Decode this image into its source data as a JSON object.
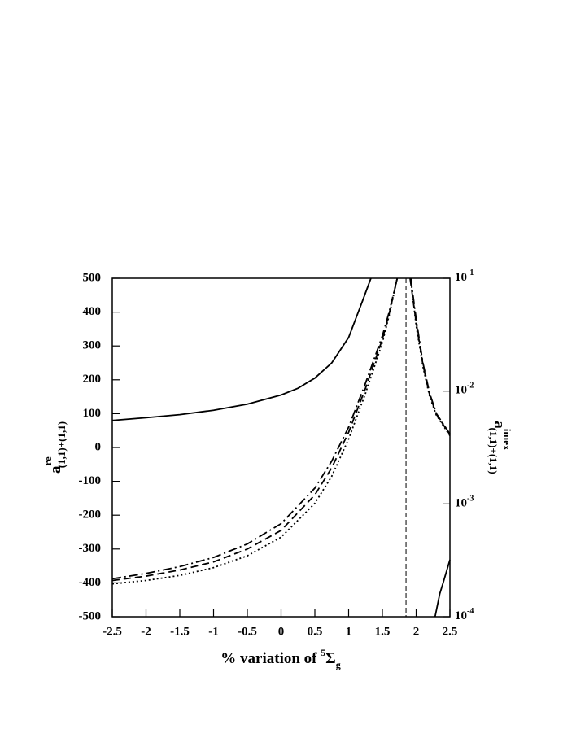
{
  "chart_data": {
    "type": "line",
    "xlabel": {
      "main": "% variation of ",
      "sup": "5",
      "symbol": "Σ",
      "sub": "g"
    },
    "ylabel": {
      "main": "a",
      "sup": "re",
      "sub": "(1,1)+(1,1)"
    },
    "y2label": {
      "main": "a",
      "sup": "imex",
      "sub": "(1,1)+(1,1)"
    },
    "xlim": [
      -2.5,
      2.5
    ],
    "xticks": [
      -2.5,
      -2,
      -1.5,
      -1,
      -0.5,
      0,
      0.5,
      1,
      1.5,
      2,
      2.5
    ],
    "ylim": [
      -500,
      500
    ],
    "yticks": [
      -500,
      -400,
      -300,
      -200,
      -100,
      0,
      100,
      200,
      300,
      400,
      500
    ],
    "y2lim": [
      0.0001,
      0.1
    ],
    "y2scale": "log",
    "y2ticks": [
      {
        "value": 0.0001,
        "label": {
          "base": "10",
          "exp": "-4"
        }
      },
      {
        "value": 0.001,
        "label": {
          "base": "10",
          "exp": "-3"
        }
      },
      {
        "value": 0.01,
        "label": {
          "base": "10",
          "exp": "-2"
        }
      },
      {
        "value": 0.1,
        "label": {
          "base": "10",
          "exp": "-1"
        }
      }
    ],
    "vline_x": 1.85,
    "series": [
      {
        "color": "#000000",
        "linestyle": "solid",
        "x": [
          -2.5,
          -2,
          -1.5,
          -1,
          -0.5,
          0,
          0.25,
          0.5,
          0.75,
          1,
          1.2,
          1.33
        ],
        "values": [
          80,
          88,
          97,
          110,
          128,
          155,
          175,
          205,
          250,
          325,
          430,
          500
        ]
      },
      {
        "color": "#000000",
        "linestyle": "solid",
        "axis": "y2",
        "x": [
          2.28,
          2.35,
          2.4,
          2.5
        ],
        "values": [
          0.0001,
          0.00016,
          0.0002,
          0.00032
        ]
      },
      {
        "color": "#000000",
        "linestyle": "dashdot",
        "x": [
          -2.5,
          -2,
          -1.5,
          -1,
          -0.5,
          0,
          0.5,
          0.75,
          1,
          1.25,
          1.5,
          1.6,
          1.72,
          1.82,
          1.92,
          2,
          2.1,
          2.2,
          2.3,
          2.4,
          2.5
        ],
        "values": [
          -388,
          -372,
          -352,
          -325,
          -285,
          -225,
          -120,
          -40,
          60,
          190,
          330,
          400,
          500,
          null,
          500,
          380,
          250,
          160,
          100,
          70,
          40
        ]
      },
      {
        "color": "#000000",
        "linestyle": "dashed",
        "x": [
          -2.5,
          -2,
          -1.5,
          -1,
          -0.5,
          0,
          0.5,
          0.75,
          1,
          1.25,
          1.5,
          1.6,
          1.72,
          1.82,
          1.91,
          2,
          2.1,
          2.2,
          2.3,
          2.4,
          2.5
        ],
        "values": [
          -393,
          -380,
          -362,
          -338,
          -300,
          -245,
          -140,
          -60,
          45,
          175,
          320,
          395,
          500,
          null,
          500,
          370,
          245,
          155,
          98,
          68,
          38
        ]
      },
      {
        "color": "#000000",
        "linestyle": "dotted",
        "x": [
          -2.5,
          -2,
          -1.5,
          -1,
          -0.5,
          0,
          0.5,
          0.75,
          1,
          1.25,
          1.5,
          1.6,
          1.72,
          1.82,
          1.92,
          2,
          2.1,
          2.2,
          2.3,
          2.4,
          2.5
        ],
        "values": [
          -403,
          -393,
          -378,
          -355,
          -320,
          -265,
          -165,
          -85,
          25,
          160,
          310,
          390,
          500,
          null,
          500,
          360,
          240,
          150,
          95,
          65,
          35
        ]
      }
    ]
  }
}
